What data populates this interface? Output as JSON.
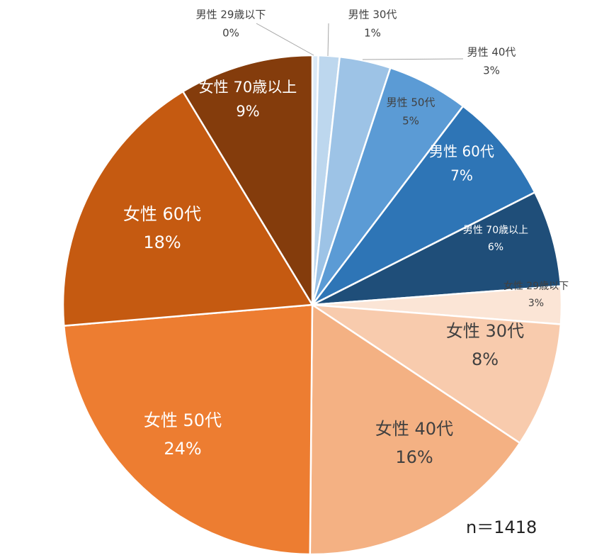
{
  "chart_data": {
    "type": "pie",
    "title": "",
    "start_angle_deg": 0,
    "direction": "clockwise",
    "slices": [
      {
        "label": "男性 29歳以下",
        "percent_label": "0%",
        "value": 0.4,
        "color": "#dbe9f7",
        "text_color": "#404040"
      },
      {
        "label": "男性 30代",
        "percent_label": "1%",
        "value": 1.4,
        "color": "#bdd7ee",
        "text_color": "#404040"
      },
      {
        "label": "男性 40代",
        "percent_label": "3%",
        "value": 3.4,
        "color": "#9dc3e6",
        "text_color": "#404040"
      },
      {
        "label": "男性 50代",
        "percent_label": "5%",
        "value": 5.4,
        "color": "#5b9bd5",
        "text_color": "#404040"
      },
      {
        "label": "男性 60代",
        "percent_label": "7%",
        "value": 7.4,
        "color": "#2e75b6",
        "text_color": "#ffffff"
      },
      {
        "label": "男性 70歳以上",
        "percent_label": "6%",
        "value": 6.4,
        "color": "#1f4e79",
        "text_color": "#ffffff"
      },
      {
        "label": "女性 29歳以下",
        "percent_label": "3%",
        "value": 2.5,
        "color": "#fbe5d6",
        "text_color": "#404040"
      },
      {
        "label": "女性 30代",
        "percent_label": "8%",
        "value": 8.3,
        "color": "#f8cbad",
        "text_color": "#404040"
      },
      {
        "label": "女性 40代",
        "percent_label": "16%",
        "value": 16.2,
        "color": "#f4b183",
        "text_color": "#404040"
      },
      {
        "label": "女性 50代",
        "percent_label": "24%",
        "value": 24.1,
        "color": "#ed7d31",
        "text_color": "#ffffff"
      },
      {
        "label": "女性 60代",
        "percent_label": "18%",
        "value": 18.1,
        "color": "#c55a11",
        "text_color": "#ffffff"
      },
      {
        "label": "女性 70歳以上",
        "percent_label": "9%",
        "value": 8.9,
        "color": "#843c0c",
        "text_color": "#ffffff"
      }
    ],
    "annotation": "n＝1418",
    "legend": "none"
  }
}
